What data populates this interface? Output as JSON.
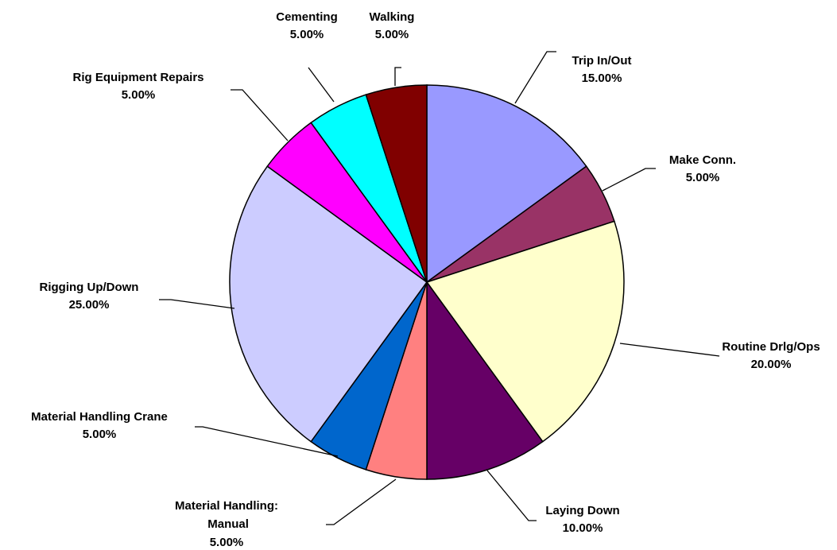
{
  "chart_data": {
    "type": "pie",
    "categories": [
      "Trip In/Out",
      "Make Conn.",
      "Routine Drlg/Ops",
      "Laying Down",
      "Material Handling: Manual",
      "Material Handling Crane",
      "Rigging Up/Down",
      "Rig Equipment Repairs",
      "Cementing",
      "Walking"
    ],
    "values": [
      15,
      5,
      20,
      10,
      5,
      5,
      25,
      5,
      5,
      5
    ],
    "value_labels": [
      "15.00%",
      "5.00%",
      "20.00%",
      "10.00%",
      "5.00%",
      "5.00%",
      "25.00%",
      "5.00%",
      "5.00%",
      "5.00%"
    ],
    "colors": [
      "#9999ff",
      "#993366",
      "#ffffcc",
      "#660066",
      "#ff8080",
      "#0066cc",
      "#ccccff",
      "#ff00ff",
      "#00ffff",
      "#800000"
    ]
  }
}
